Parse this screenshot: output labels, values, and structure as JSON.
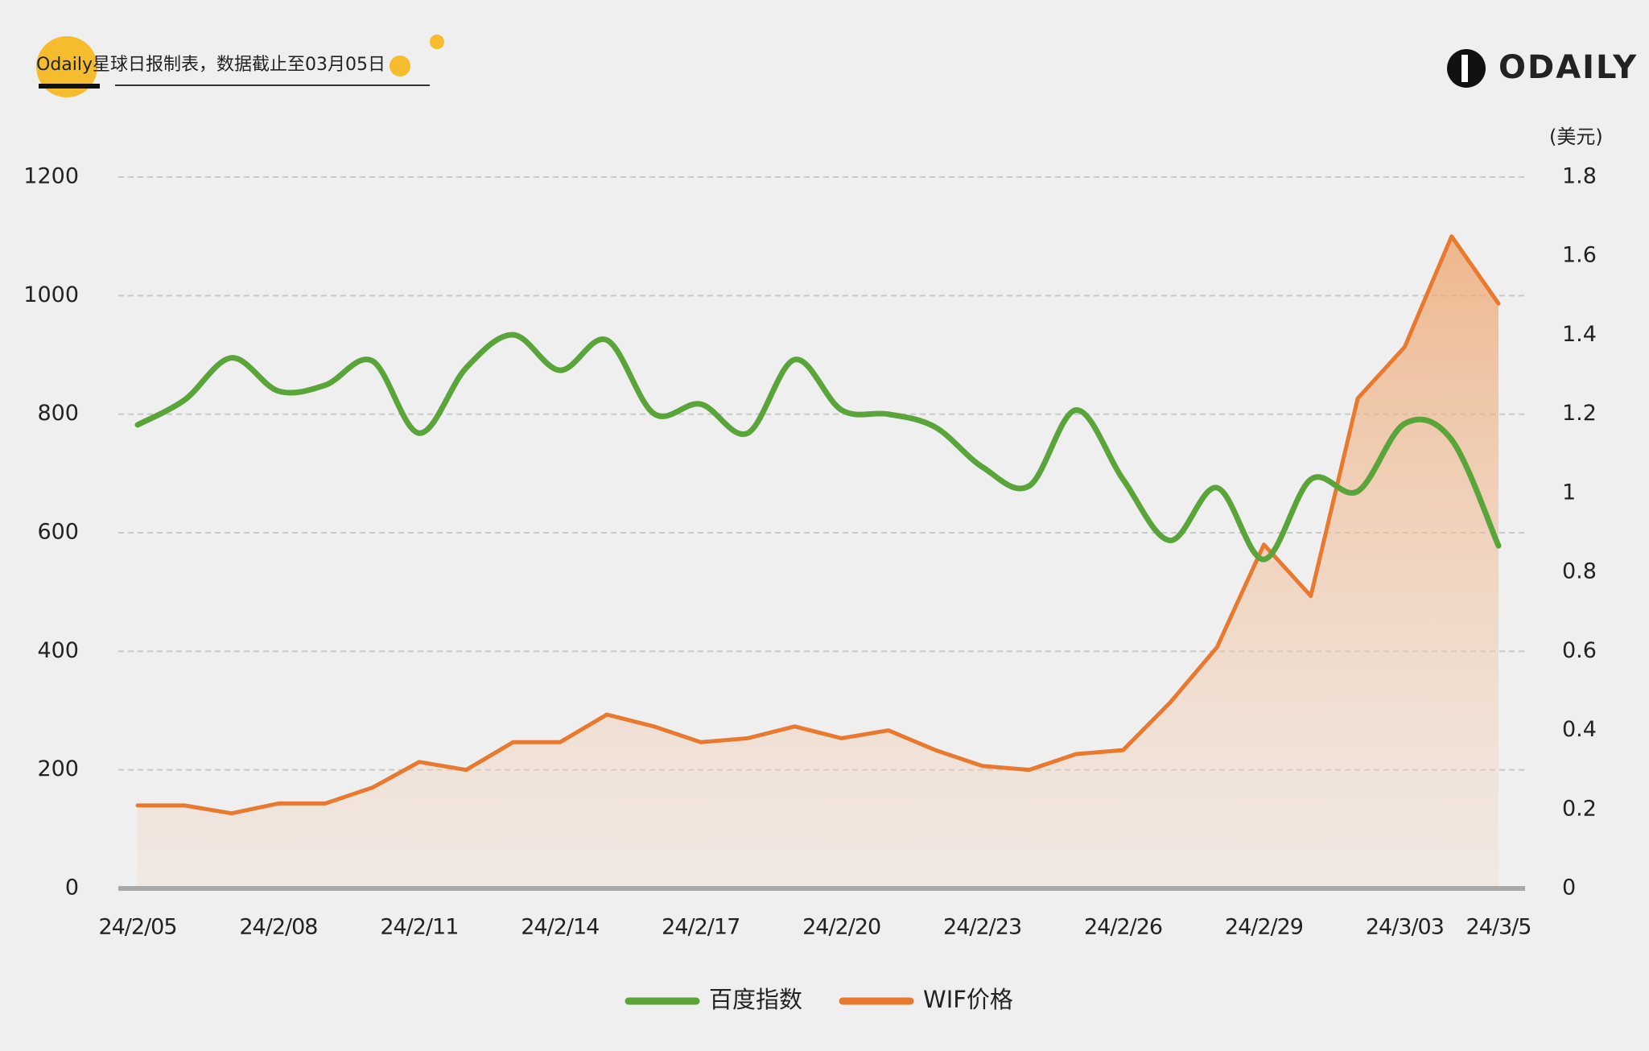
{
  "chart_data": {
    "type": "line",
    "title": "Odaily星球日报制表，数据截止至03月05日",
    "brand": "ODAILY",
    "y2label": "(美元)",
    "categories": [
      "24/2/05",
      null,
      null,
      "24/2/08",
      null,
      null,
      "24/2/11",
      null,
      null,
      "24/2/14",
      null,
      null,
      "24/2/17",
      null,
      null,
      "24/2/20",
      null,
      null,
      "24/2/23",
      null,
      null,
      "24/2/26",
      null,
      null,
      "24/2/29",
      null,
      null,
      "24/3/03",
      null,
      "24/3/5"
    ],
    "series": [
      {
        "name": "百度指数",
        "color": "#5aa53a",
        "smooth": true,
        "values": [
          782,
          824,
          895,
          839,
          849,
          890,
          768,
          878,
          934,
          874,
          925,
          801,
          817,
          768,
          892,
          807,
          800,
          778,
          711,
          679,
          807,
          690,
          587,
          676,
          555,
          690,
          670,
          784,
          757,
          578
        ]
      },
      {
        "name": "WIF价格",
        "color": "#e8792e",
        "axis": "y2",
        "area": true,
        "values": [
          0.21,
          0.21,
          0.19,
          0.215,
          0.215,
          0.255,
          0.32,
          0.3,
          0.37,
          0.37,
          0.44,
          0.41,
          0.37,
          0.38,
          0.41,
          0.38,
          0.4,
          0.35,
          0.31,
          0.3,
          0.34,
          0.35,
          0.47,
          0.61,
          0.87,
          0.74,
          1.24,
          1.37,
          1.65,
          1.48
        ]
      }
    ],
    "ylim": [
      0,
      1200
    ],
    "yticks": [
      0,
      200,
      400,
      600,
      800,
      1000,
      1200
    ],
    "y2lim": [
      0,
      1.8
    ],
    "y2ticks": [
      0,
      0.2,
      0.4,
      0.6,
      0.8,
      1,
      1.2,
      1.4,
      1.6,
      1.8
    ],
    "grid": true,
    "legend": "bottom"
  }
}
